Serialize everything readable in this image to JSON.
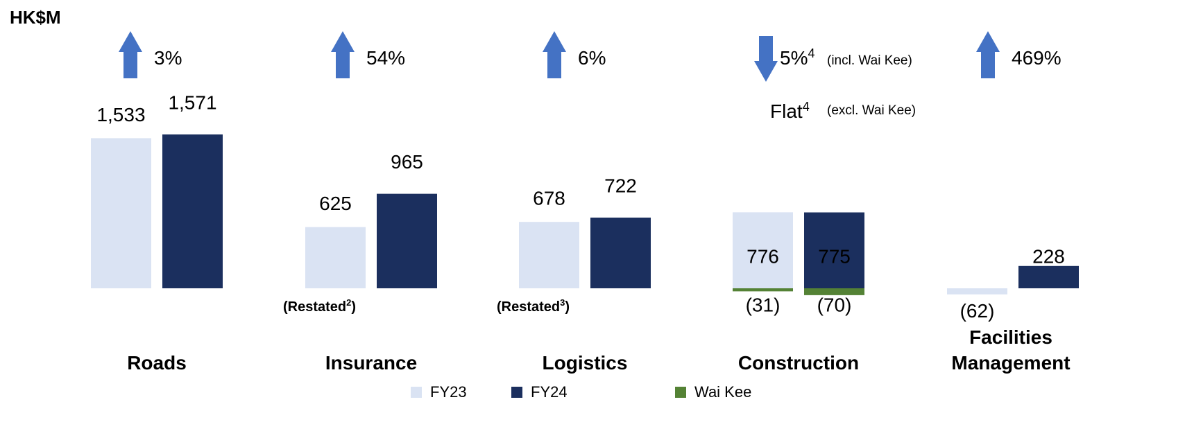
{
  "chart_data": {
    "type": "bar",
    "unit_label": "HK$M",
    "categories": [
      "Roads",
      "Insurance",
      "Logistics",
      "Construction",
      "Facilities Management"
    ],
    "series": [
      {
        "name": "FY23",
        "color": "#dae3f3",
        "values": [
          1533,
          625,
          678,
          776,
          -62
        ],
        "value_labels": [
          "1,533",
          "625",
          "678",
          "776",
          "(62)"
        ]
      },
      {
        "name": "FY24",
        "color": "#1b2f5e",
        "values": [
          1571,
          965,
          722,
          775,
          228
        ],
        "value_labels": [
          "1,571",
          "965",
          "722",
          "775",
          "228"
        ]
      },
      {
        "name": "Wai Kee",
        "color": "#548235",
        "values": [
          null,
          null,
          null,
          -31,
          -70
        ],
        "value_labels": [
          null,
          null,
          null,
          "(31)",
          "(70)"
        ]
      }
    ],
    "changes": [
      {
        "direction": "up",
        "label": "3%"
      },
      {
        "direction": "up",
        "label": "54%"
      },
      {
        "direction": "up",
        "label": "6%"
      },
      {
        "direction": "down",
        "label": "5%",
        "footnote": "4",
        "note": "(incl. Wai Kee)"
      },
      {
        "direction": "up",
        "label": "469%"
      }
    ],
    "secondary_change": {
      "label": "Flat",
      "footnote": "4",
      "note": "(excl. Wai Kee)"
    },
    "category_notes": [
      null,
      {
        "prefix": "(Restated",
        "footnote": "2",
        "suffix": ")"
      },
      {
        "prefix": "(Restated",
        "footnote": "3",
        "suffix": ")"
      },
      null,
      null
    ]
  }
}
